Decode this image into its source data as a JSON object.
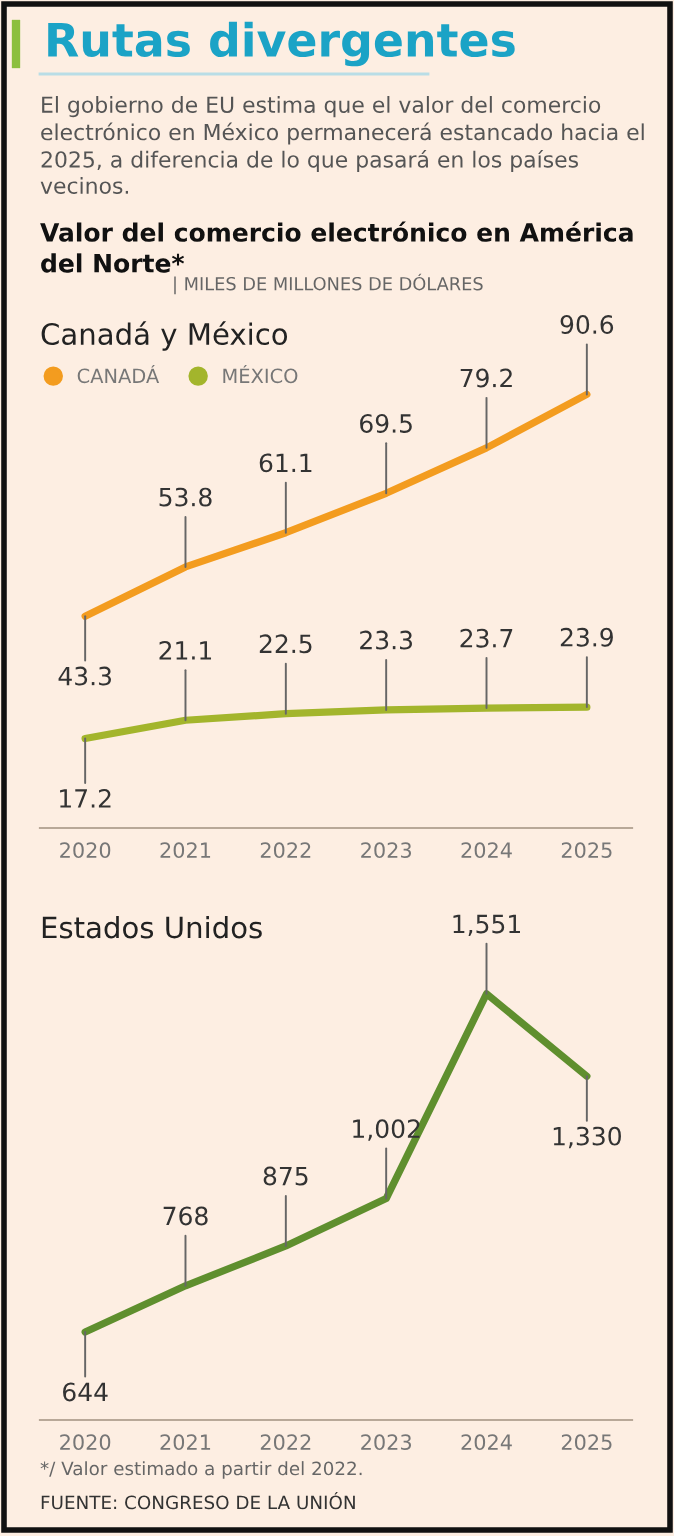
{
  "chart_data": [
    {
      "type": "line",
      "title": "Canadá y México",
      "annotations": [
        "Rutas divergentes",
        "El gobierno de EU estima que el valor del comercio electrónico en México permanecerá estancado hacia el 2025, a diferencia de lo que pasará en los países vecinos.",
        "Valor del comercio electrónico en América del Norte*",
        "| MILES DE MILLONES DE DÓLARES"
      ],
      "categories": [
        "2020",
        "2021",
        "2022",
        "2023",
        "2024",
        "2025"
      ],
      "series": [
        {
          "name": "CANADÁ",
          "color": "#f39c1f",
          "values": [
            43.3,
            53.8,
            61.1,
            69.5,
            79.2,
            90.6
          ],
          "value_labels": [
            "43.3",
            "53.8",
            "61.1",
            "69.5",
            "79.2",
            "90.6"
          ]
        },
        {
          "name": "MÉXICO",
          "color": "#a3b52c",
          "values": [
            17.2,
            21.1,
            22.5,
            23.3,
            23.7,
            23.9
          ],
          "value_labels": [
            "17.2",
            "21.1",
            "22.5",
            "23.3",
            "23.7",
            "23.9"
          ]
        }
      ],
      "legend": "top left",
      "grid": false,
      "marker": "none",
      "line_style": "solid"
    },
    {
      "type": "line",
      "title": "Estados Unidos",
      "annotations": [
        "*/ Valor estimado a partir del 2022.",
        "FUENTE: CONGRESO DE LA UNIÓN"
      ],
      "categories": [
        "2020",
        "2021",
        "2022",
        "2023",
        "2024",
        "2025"
      ],
      "series": [
        {
          "color": "#5f8f2e",
          "values": [
            644,
            768,
            875,
            1002,
            1551,
            1330
          ],
          "value_labels": [
            "644",
            "768",
            "875",
            "1,002",
            "1,551",
            "1,330"
          ]
        }
      ],
      "grid": false,
      "marker": "none",
      "line_style": "solid"
    }
  ]
}
